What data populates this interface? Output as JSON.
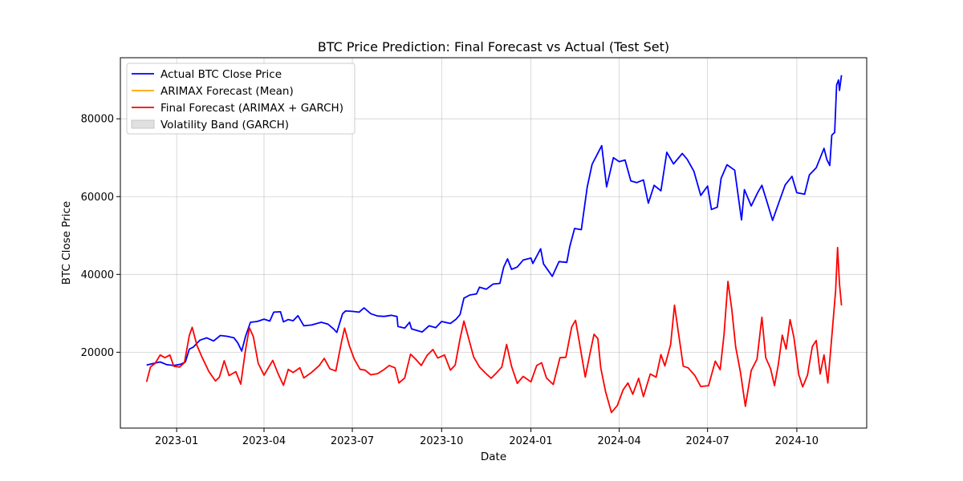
{
  "chart_data": {
    "type": "line",
    "title": "BTC Price Prediction: Final Forecast vs Actual (Test Set)",
    "xlabel": "Date",
    "ylabel": "BTC Close Price",
    "xlim": [
      "2022-11-04",
      "2024-12-12"
    ],
    "ylim": [
      500,
      95700
    ],
    "grid": true,
    "legend_position": "top-left",
    "x_ticks": [
      "2023-01-01",
      "2023-04-01",
      "2023-07-01",
      "2023-10-01",
      "2024-01-01",
      "2024-04-01",
      "2024-07-01",
      "2024-10-01"
    ],
    "x_tick_labels": [
      "2023-01",
      "2023-04",
      "2023-07",
      "2023-10",
      "2024-01",
      "2024-04",
      "2024-07",
      "2024-10"
    ],
    "y_ticks": [
      20000,
      40000,
      60000,
      80000
    ],
    "y_tick_labels": [
      "20000",
      "40000",
      "60000",
      "80000"
    ],
    "series": [
      {
        "name": "Actual BTC Close Price",
        "color": "#0000ff",
        "points": [
          [
            "2022-12-01",
            16700
          ],
          [
            "2022-12-08",
            17100
          ],
          [
            "2022-12-15",
            17500
          ],
          [
            "2022-12-22",
            16800
          ],
          [
            "2022-12-29",
            16600
          ],
          [
            "2023-01-05",
            16900
          ],
          [
            "2023-01-10",
            17500
          ],
          [
            "2023-01-14",
            20800
          ],
          [
            "2023-01-18",
            21300
          ],
          [
            "2023-01-25",
            23100
          ],
          [
            "2023-02-01",
            23700
          ],
          [
            "2023-02-08",
            22900
          ],
          [
            "2023-02-15",
            24300
          ],
          [
            "2023-02-22",
            24100
          ],
          [
            "2023-03-01",
            23700
          ],
          [
            "2023-03-05",
            22400
          ],
          [
            "2023-03-09",
            20300
          ],
          [
            "2023-03-13",
            24100
          ],
          [
            "2023-03-18",
            27700
          ],
          [
            "2023-03-25",
            27900
          ],
          [
            "2023-04-01",
            28500
          ],
          [
            "2023-04-07",
            28000
          ],
          [
            "2023-04-11",
            30300
          ],
          [
            "2023-04-18",
            30400
          ],
          [
            "2023-04-21",
            27800
          ],
          [
            "2023-04-26",
            28400
          ],
          [
            "2023-05-01",
            28100
          ],
          [
            "2023-05-06",
            29400
          ],
          [
            "2023-05-12",
            26800
          ],
          [
            "2023-05-20",
            27000
          ],
          [
            "2023-05-30",
            27700
          ],
          [
            "2023-06-06",
            27200
          ],
          [
            "2023-06-12",
            25900
          ],
          [
            "2023-06-15",
            25100
          ],
          [
            "2023-06-21",
            29900
          ],
          [
            "2023-06-24",
            30600
          ],
          [
            "2023-07-01",
            30500
          ],
          [
            "2023-07-08",
            30300
          ],
          [
            "2023-07-13",
            31400
          ],
          [
            "2023-07-20",
            29900
          ],
          [
            "2023-07-27",
            29300
          ],
          [
            "2023-08-03",
            29200
          ],
          [
            "2023-08-10",
            29500
          ],
          [
            "2023-08-16",
            29200
          ],
          [
            "2023-08-17",
            26600
          ],
          [
            "2023-08-24",
            26200
          ],
          [
            "2023-08-29",
            27700
          ],
          [
            "2023-08-31",
            26000
          ],
          [
            "2023-09-11",
            25200
          ],
          [
            "2023-09-18",
            26800
          ],
          [
            "2023-09-25",
            26300
          ],
          [
            "2023-10-01",
            27900
          ],
          [
            "2023-10-10",
            27400
          ],
          [
            "2023-10-16",
            28500
          ],
          [
            "2023-10-20",
            29700
          ],
          [
            "2023-10-24",
            33900
          ],
          [
            "2023-10-30",
            34700
          ],
          [
            "2023-11-06",
            35000
          ],
          [
            "2023-11-09",
            36700
          ],
          [
            "2023-11-16",
            36200
          ],
          [
            "2023-11-23",
            37500
          ],
          [
            "2023-11-30",
            37700
          ],
          [
            "2023-12-04",
            41900
          ],
          [
            "2023-12-08",
            44000
          ],
          [
            "2023-12-12",
            41300
          ],
          [
            "2023-12-18",
            41900
          ],
          [
            "2023-12-24",
            43700
          ],
          [
            "2024-01-01",
            44200
          ],
          [
            "2024-01-03",
            42800
          ],
          [
            "2024-01-11",
            46600
          ],
          [
            "2024-01-14",
            42700
          ],
          [
            "2024-01-23",
            39500
          ],
          [
            "2024-01-30",
            43300
          ],
          [
            "2024-02-07",
            43100
          ],
          [
            "2024-02-10",
            47100
          ],
          [
            "2024-02-15",
            51800
          ],
          [
            "2024-02-22",
            51500
          ],
          [
            "2024-02-28",
            62400
          ],
          [
            "2024-03-04",
            68300
          ],
          [
            "2024-03-14",
            73100
          ],
          [
            "2024-03-19",
            62500
          ],
          [
            "2024-03-26",
            70000
          ],
          [
            "2024-04-01",
            69000
          ],
          [
            "2024-04-07",
            69400
          ],
          [
            "2024-04-13",
            64000
          ],
          [
            "2024-04-19",
            63600
          ],
          [
            "2024-04-26",
            64300
          ],
          [
            "2024-05-01",
            58300
          ],
          [
            "2024-05-07",
            62900
          ],
          [
            "2024-05-14",
            61500
          ],
          [
            "2024-05-20",
            71400
          ],
          [
            "2024-05-27",
            68400
          ],
          [
            "2024-06-05",
            71100
          ],
          [
            "2024-06-10",
            69600
          ],
          [
            "2024-06-17",
            66500
          ],
          [
            "2024-06-24",
            60300
          ],
          [
            "2024-07-01",
            62700
          ],
          [
            "2024-07-05",
            56700
          ],
          [
            "2024-07-11",
            57300
          ],
          [
            "2024-07-15",
            64700
          ],
          [
            "2024-07-21",
            68200
          ],
          [
            "2024-07-29",
            66800
          ],
          [
            "2024-08-05",
            54000
          ],
          [
            "2024-08-08",
            61800
          ],
          [
            "2024-08-15",
            57600
          ],
          [
            "2024-08-22",
            61200
          ],
          [
            "2024-08-26",
            62900
          ],
          [
            "2024-08-31",
            58900
          ],
          [
            "2024-09-06",
            53900
          ],
          [
            "2024-09-12",
            58100
          ],
          [
            "2024-09-19",
            63000
          ],
          [
            "2024-09-26",
            65200
          ],
          [
            "2024-10-01",
            61000
          ],
          [
            "2024-10-09",
            60600
          ],
          [
            "2024-10-14",
            65600
          ],
          [
            "2024-10-21",
            67400
          ],
          [
            "2024-10-29",
            72400
          ],
          [
            "2024-11-01",
            69500
          ],
          [
            "2024-11-04",
            68000
          ],
          [
            "2024-11-06",
            75800
          ],
          [
            "2024-11-09",
            76500
          ],
          [
            "2024-11-11",
            88700
          ],
          [
            "2024-11-13",
            90000
          ],
          [
            "2024-11-14",
            87300
          ],
          [
            "2024-11-16",
            91200
          ]
        ]
      },
      {
        "name": "ARIMAX Forecast (Mean)",
        "color": "#ffa500",
        "points": []
      },
      {
        "name": "Final Forecast (ARIMAX + GARCH)",
        "color": "#ff0000",
        "points": [
          [
            "2022-12-01",
            12400
          ],
          [
            "2022-12-05",
            16200
          ],
          [
            "2022-12-10",
            17200
          ],
          [
            "2022-12-15",
            19300
          ],
          [
            "2022-12-20",
            18600
          ],
          [
            "2022-12-25",
            19300
          ],
          [
            "2022-12-29",
            16400
          ],
          [
            "2023-01-04",
            16200
          ],
          [
            "2023-01-09",
            17300
          ],
          [
            "2023-01-14",
            24300
          ],
          [
            "2023-01-17",
            26400
          ],
          [
            "2023-01-22",
            21700
          ],
          [
            "2023-01-27",
            18800
          ],
          [
            "2023-02-03",
            15100
          ],
          [
            "2023-02-10",
            12600
          ],
          [
            "2023-02-14",
            13600
          ],
          [
            "2023-02-19",
            17800
          ],
          [
            "2023-02-24",
            14000
          ],
          [
            "2023-03-03",
            15000
          ],
          [
            "2023-03-08",
            11800
          ],
          [
            "2023-03-13",
            20700
          ],
          [
            "2023-03-17",
            26300
          ],
          [
            "2023-03-21",
            24000
          ],
          [
            "2023-03-26",
            17200
          ],
          [
            "2023-04-01",
            14100
          ],
          [
            "2023-04-10",
            17900
          ],
          [
            "2023-04-15",
            14800
          ],
          [
            "2023-04-21",
            11500
          ],
          [
            "2023-04-26",
            15600
          ],
          [
            "2023-05-01",
            14800
          ],
          [
            "2023-05-08",
            16000
          ],
          [
            "2023-05-12",
            13400
          ],
          [
            "2023-05-20",
            14800
          ],
          [
            "2023-05-28",
            16600
          ],
          [
            "2023-06-02",
            18400
          ],
          [
            "2023-06-08",
            15700
          ],
          [
            "2023-06-14",
            15200
          ],
          [
            "2023-06-20",
            22800
          ],
          [
            "2023-06-23",
            26200
          ],
          [
            "2023-06-28",
            21600
          ],
          [
            "2023-07-03",
            18200
          ],
          [
            "2023-07-09",
            15600
          ],
          [
            "2023-07-14",
            15400
          ],
          [
            "2023-07-20",
            14200
          ],
          [
            "2023-07-27",
            14500
          ],
          [
            "2023-08-03",
            15600
          ],
          [
            "2023-08-08",
            16600
          ],
          [
            "2023-08-14",
            16000
          ],
          [
            "2023-08-18",
            12100
          ],
          [
            "2023-08-24",
            13400
          ],
          [
            "2023-08-30",
            19500
          ],
          [
            "2023-09-04",
            18300
          ],
          [
            "2023-09-10",
            16600
          ],
          [
            "2023-09-16",
            19200
          ],
          [
            "2023-09-22",
            20700
          ],
          [
            "2023-09-27",
            18500
          ],
          [
            "2023-10-04",
            19300
          ],
          [
            "2023-10-10",
            15400
          ],
          [
            "2023-10-15",
            16700
          ],
          [
            "2023-10-20",
            23500
          ],
          [
            "2023-10-24",
            28000
          ],
          [
            "2023-10-28",
            24300
          ],
          [
            "2023-11-03",
            18800
          ],
          [
            "2023-11-09",
            16200
          ],
          [
            "2023-11-15",
            14700
          ],
          [
            "2023-11-21",
            13300
          ],
          [
            "2023-11-27",
            14800
          ],
          [
            "2023-12-02",
            16200
          ],
          [
            "2023-12-07",
            22000
          ],
          [
            "2023-12-12",
            16400
          ],
          [
            "2023-12-18",
            12000
          ],
          [
            "2023-12-24",
            13800
          ],
          [
            "2024-01-01",
            12400
          ],
          [
            "2024-01-07",
            16600
          ],
          [
            "2024-01-12",
            17300
          ],
          [
            "2024-01-17",
            13400
          ],
          [
            "2024-01-24",
            11700
          ],
          [
            "2024-01-31",
            18600
          ],
          [
            "2024-02-06",
            18700
          ],
          [
            "2024-02-12",
            26500
          ],
          [
            "2024-02-16",
            28200
          ],
          [
            "2024-02-20",
            22500
          ],
          [
            "2024-02-26",
            13600
          ],
          [
            "2024-03-02",
            19800
          ],
          [
            "2024-03-06",
            24600
          ],
          [
            "2024-03-10",
            23500
          ],
          [
            "2024-03-13",
            16000
          ],
          [
            "2024-03-18",
            9800
          ],
          [
            "2024-03-24",
            4500
          ],
          [
            "2024-03-30",
            6300
          ],
          [
            "2024-04-05",
            10300
          ],
          [
            "2024-04-10",
            12100
          ],
          [
            "2024-04-15",
            9200
          ],
          [
            "2024-04-21",
            13300
          ],
          [
            "2024-04-26",
            8600
          ],
          [
            "2024-05-03",
            14400
          ],
          [
            "2024-05-09",
            13600
          ],
          [
            "2024-05-14",
            19400
          ],
          [
            "2024-05-18",
            16500
          ],
          [
            "2024-05-24",
            22000
          ],
          [
            "2024-05-28",
            32100
          ],
          [
            "2024-06-01",
            25000
          ],
          [
            "2024-06-06",
            16400
          ],
          [
            "2024-06-11",
            16000
          ],
          [
            "2024-06-18",
            14000
          ],
          [
            "2024-06-24",
            11200
          ],
          [
            "2024-07-02",
            11400
          ],
          [
            "2024-07-09",
            17700
          ],
          [
            "2024-07-14",
            15500
          ],
          [
            "2024-07-18",
            24500
          ],
          [
            "2024-07-22",
            38200
          ],
          [
            "2024-07-26",
            31000
          ],
          [
            "2024-07-30",
            21400
          ],
          [
            "2024-08-04",
            14700
          ],
          [
            "2024-08-09",
            6100
          ],
          [
            "2024-08-15",
            15300
          ],
          [
            "2024-08-21",
            18200
          ],
          [
            "2024-08-26",
            29000
          ],
          [
            "2024-08-30",
            18600
          ],
          [
            "2024-09-04",
            15700
          ],
          [
            "2024-09-08",
            11400
          ],
          [
            "2024-09-12",
            16900
          ],
          [
            "2024-09-16",
            24400
          ],
          [
            "2024-09-20",
            20800
          ],
          [
            "2024-09-24",
            28400
          ],
          [
            "2024-09-28",
            23800
          ],
          [
            "2024-10-03",
            14300
          ],
          [
            "2024-10-07",
            11100
          ],
          [
            "2024-10-12",
            14100
          ],
          [
            "2024-10-17",
            21500
          ],
          [
            "2024-10-21",
            23000
          ],
          [
            "2024-10-25",
            14400
          ],
          [
            "2024-10-29",
            19300
          ],
          [
            "2024-11-02",
            12100
          ],
          [
            "2024-11-06",
            24000
          ],
          [
            "2024-11-10",
            35900
          ],
          [
            "2024-11-12",
            46900
          ],
          [
            "2024-11-14",
            37500
          ],
          [
            "2024-11-16",
            32000
          ]
        ]
      }
    ],
    "bands": [
      {
        "name": "Volatility Band (GARCH)",
        "color": "#d3d3d3",
        "points": []
      }
    ]
  }
}
